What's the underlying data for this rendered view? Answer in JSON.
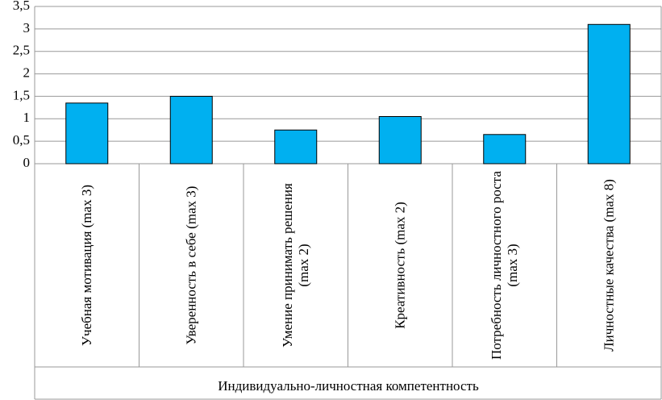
{
  "chart_data": {
    "type": "bar",
    "categories": [
      "Учебная мотивация (max 3)",
      "Уверенность в себе (max 3)",
      "Умение принимать решения (max 2)",
      "Креативность (max 2)",
      "Потребность личностного роста (max 3)",
      "Личностные качества (max 8)"
    ],
    "values": [
      1.35,
      1.5,
      0.75,
      1.05,
      0.65,
      3.1
    ],
    "color": "#00b0f0",
    "xlabel": "Индивидуально-личностная компетентность",
    "ylim": [
      0,
      3.5
    ],
    "yticks": [
      0,
      {
        "value": 0.5,
        "label": "0,5"
      },
      1,
      {
        "value": 1.5,
        "label": "1,5"
      },
      2,
      {
        "value": 2.5,
        "label": "2,5"
      },
      3,
      {
        "value": 3.5,
        "label": "3,5"
      }
    ],
    "grid": true
  }
}
